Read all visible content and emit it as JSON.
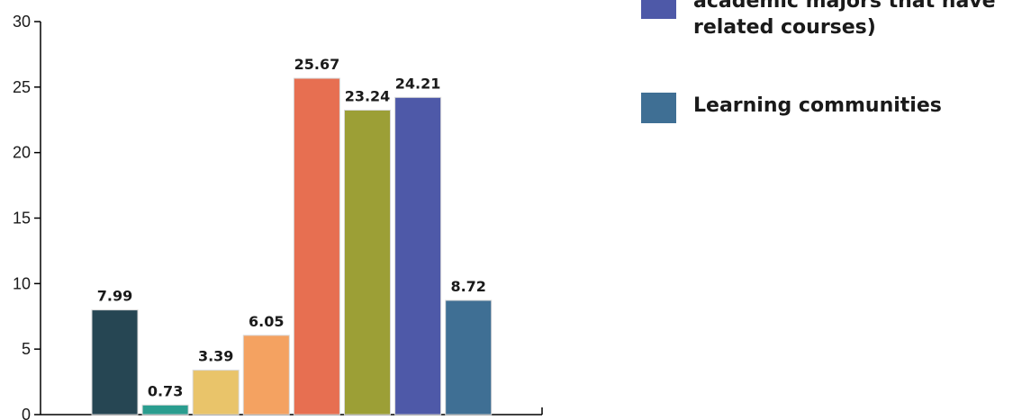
{
  "chart_data": {
    "type": "bar",
    "categories": [
      "",
      "",
      "",
      "",
      "",
      "",
      "",
      ""
    ],
    "values": [
      7.99,
      0.73,
      3.39,
      6.05,
      25.67,
      23.24,
      24.21,
      8.72
    ],
    "value_labels": [
      "7.99",
      "0.73",
      "3.39",
      "6.05",
      "25.67",
      "23.24",
      "24.21",
      "8.72"
    ],
    "colors": [
      "#264653",
      "#2a9d8f",
      "#e9c46a",
      "#f4a261",
      "#e76f51",
      "#9c9f36",
      "#4e59a8",
      "#3f6f94"
    ],
    "ylim": [
      0,
      30
    ],
    "yticks": [
      0,
      5,
      10,
      15,
      20,
      25,
      30
    ],
    "grid": false,
    "legend_placement": "right",
    "legend": [
      {
        "label": "academic majors that have\nrelated courses)",
        "color": "#4e59a8"
      },
      {
        "label": "Learning communities",
        "color": "#3f6f94"
      }
    ]
  }
}
